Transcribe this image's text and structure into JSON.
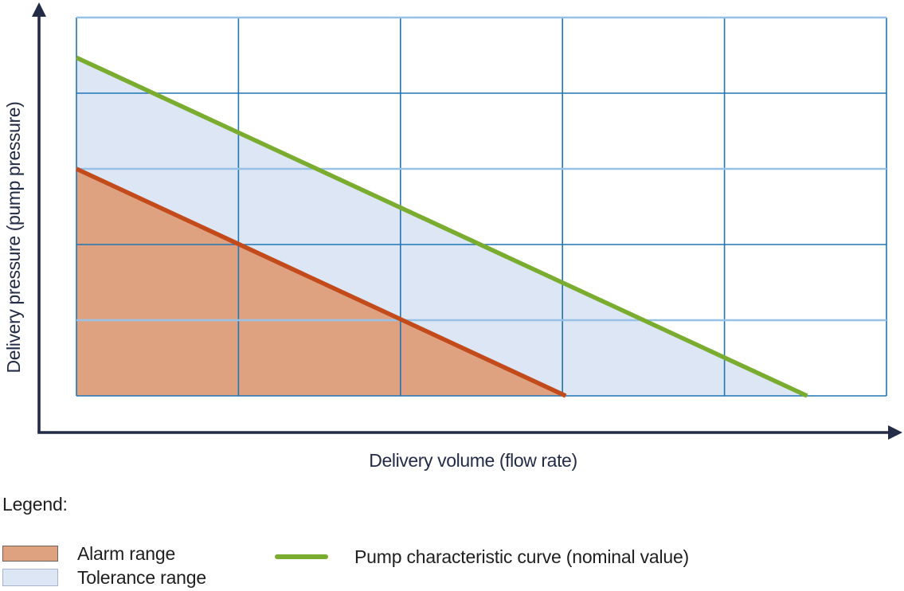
{
  "chart_data": {
    "type": "area",
    "title": "",
    "xlabel": "Delivery volume (flow rate)",
    "ylabel": "Delivery pressure (pump pressure)",
    "x_range": [
      0,
      5
    ],
    "y_range": [
      0,
      5
    ],
    "axis_tick_labels": "none (conceptual, unitless diagram)",
    "grid": "on",
    "legend_position": "below-chart",
    "series": [
      {
        "name": "Tolerance range",
        "type": "area",
        "fill": "#DCE6F4",
        "points": [
          [
            0,
            4.47
          ],
          [
            4.51,
            0
          ],
          [
            0,
            0
          ]
        ]
      },
      {
        "name": "Alarm range",
        "type": "area",
        "fill": "#DFA280",
        "edge": "#C24A1B",
        "points": [
          [
            0,
            3.0
          ],
          [
            3.02,
            0
          ],
          [
            0,
            0
          ]
        ]
      },
      {
        "name": "Pump characteristic curve (nominal value)",
        "type": "line",
        "color": "#7AAC30",
        "points": [
          [
            0,
            4.47
          ],
          [
            4.51,
            0
          ]
        ]
      }
    ]
  },
  "chart": {
    "xlabel": "Delivery volume (flow rate)",
    "ylabel": "Delivery pressure (pump pressure)"
  },
  "legend": {
    "heading": "Legend:",
    "items": [
      {
        "swatch": "alarm-fill-swatch",
        "label": "Alarm range"
      },
      {
        "swatch": "tolerance-fill-swatch",
        "label": "Tolerance range"
      },
      {
        "swatch": "nominal-line-swatch",
        "label": "Pump characteristic curve (nominal value)"
      }
    ]
  },
  "colors": {
    "axis": "#232C47",
    "grid_strong": "#2075B4",
    "grid_light": "#97C1E6",
    "nominal_green": "#7AAC30",
    "alarm_edge": "#C24A1B",
    "alarm_fill": "#DFA280",
    "tolerance_fill": "#DCE6F4",
    "legend_text": "#1F1F1F",
    "background": "#FFFFFF"
  }
}
